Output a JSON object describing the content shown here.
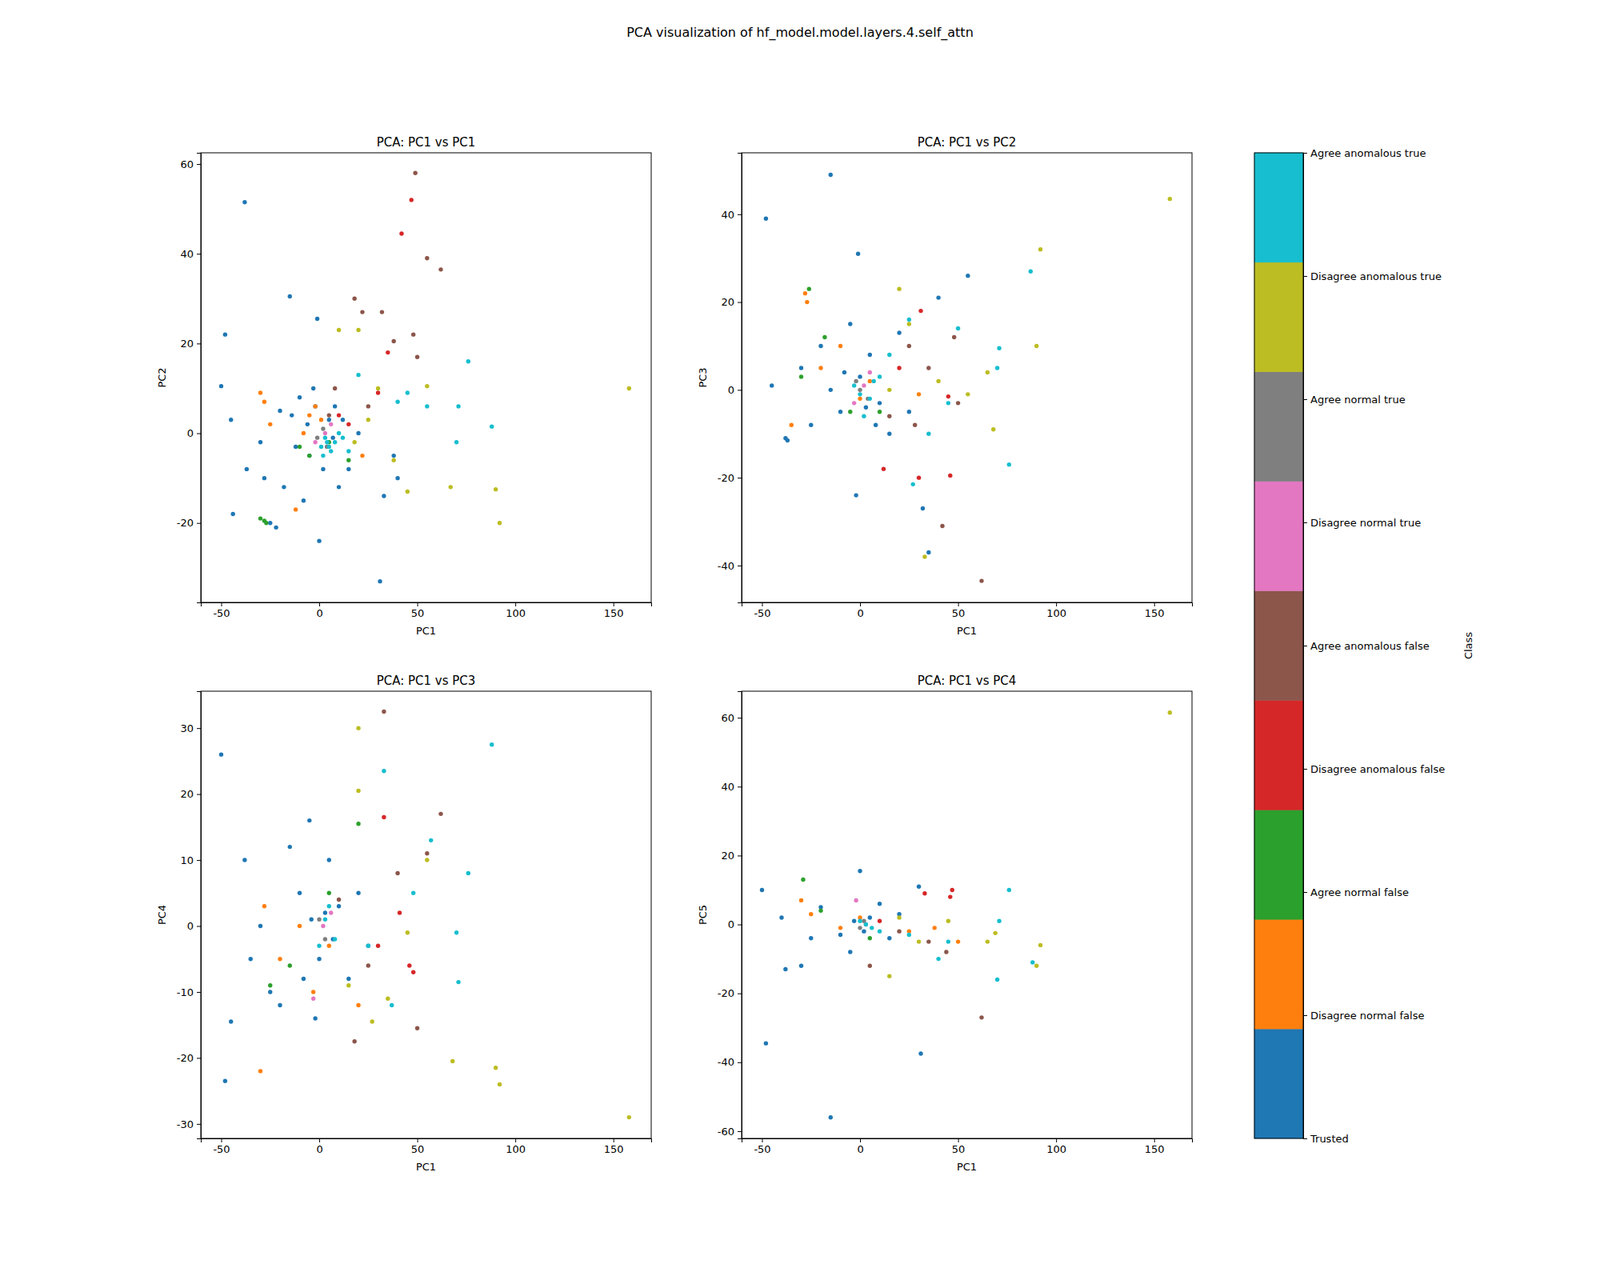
{
  "title": "PCA visualization of hf_model.model.layers.4.self_attn",
  "colorbar": {
    "label": "Class",
    "range": [
      0,
      8
    ],
    "ticks": [
      {
        "value": 0,
        "label": "Trusted"
      },
      {
        "value": 1,
        "label": "Disagree normal false"
      },
      {
        "value": 2,
        "label": "Agree normal false"
      },
      {
        "value": 3,
        "label": "Disagree anomalous false"
      },
      {
        "value": 4,
        "label": "Agree anomalous false"
      },
      {
        "value": 5,
        "label": "Disagree normal true"
      },
      {
        "value": 6,
        "label": "Agree normal true"
      },
      {
        "value": 7,
        "label": "Disagree anomalous true"
      },
      {
        "value": 8,
        "label": "Agree anomalous true"
      }
    ],
    "colors": [
      "#1f77b4",
      "#ff7f0e",
      "#2ca02c",
      "#d62728",
      "#8c564b",
      "#e377c2",
      "#7f7f7f",
      "#bcbd22",
      "#17becf"
    ]
  },
  "chart_data": [
    {
      "type": "scatter",
      "title": "PCA: PC1 vs PC1",
      "x_label": "PC1",
      "y_label": "PC2",
      "marker": "o",
      "xlim": [
        -60.4,
        169.3
      ],
      "ylim": [
        -37.7,
        62.5
      ],
      "xticks": [
        -50,
        0,
        50,
        100,
        150
      ],
      "yticks": [
        -20,
        0,
        20,
        40,
        60
      ],
      "series": [
        {
          "color": "#1f77b4",
          "x": [
            -38,
            -15,
            -1,
            -48,
            -50,
            -45,
            -44,
            -37,
            -28,
            -22,
            -25,
            0,
            31,
            33,
            38,
            40,
            -20,
            -10,
            -5,
            5,
            -12,
            2,
            8,
            -3,
            -30,
            -18,
            15,
            20,
            -8,
            10,
            -6,
            4,
            -14,
            12,
            -2,
            7
          ],
          "values": [
            51.5,
            30.5,
            25.5,
            22,
            10.5,
            3,
            -18,
            -8,
            -10,
            -21,
            -20,
            -24,
            -33,
            -14,
            -5,
            -10,
            5,
            8,
            -5,
            3,
            -3,
            -8,
            6,
            10,
            -2,
            -12,
            -8,
            0,
            -15,
            -12,
            2,
            -3,
            4,
            3,
            6,
            -1
          ]
        },
        {
          "color": "#ff7f0e",
          "x": [
            -30,
            -28,
            -25,
            -12,
            -5,
            -2,
            1,
            -8,
            22
          ],
          "values": [
            9,
            7,
            2,
            -17,
            4,
            6,
            3,
            0,
            -5
          ]
        },
        {
          "color": "#2ca02c",
          "x": [
            -30,
            -28,
            -27,
            -10,
            -5,
            5,
            15
          ],
          "values": [
            -19,
            -19.5,
            -20,
            -3,
            -5,
            -2,
            -6
          ]
        },
        {
          "color": "#d62728",
          "x": [
            47,
            42,
            35,
            30,
            15,
            10
          ],
          "values": [
            52,
            44.5,
            18,
            9,
            2,
            4
          ]
        },
        {
          "color": "#8c564b",
          "x": [
            49,
            55,
            62,
            18,
            22,
            32,
            38,
            48,
            50,
            25,
            8,
            5
          ],
          "values": [
            58,
            39,
            36.5,
            30,
            27,
            27,
            20.5,
            22,
            17,
            6,
            10,
            4
          ]
        },
        {
          "color": "#e377c2",
          "x": [
            3,
            -2,
            6
          ],
          "values": [
            0,
            -2,
            2
          ]
        },
        {
          "color": "#7f7f7f",
          "x": [
            2,
            -1,
            4
          ],
          "values": [
            1,
            -1,
            -3
          ]
        },
        {
          "color": "#bcbd22",
          "x": [
            158,
            92,
            90,
            67,
            45,
            38,
            25,
            20,
            10,
            30,
            55,
            18
          ],
          "values": [
            10,
            -20,
            -12.5,
            -12,
            -13,
            -6,
            3,
            23,
            23,
            10,
            10.5,
            -2
          ]
        },
        {
          "color": "#17becf",
          "x": [
            76,
            88,
            71,
            70,
            55,
            45,
            40,
            20,
            15,
            5,
            8,
            2,
            10,
            3,
            6,
            1,
            12,
            4
          ],
          "values": [
            16,
            1.5,
            6,
            -2,
            6,
            9,
            7,
            13,
            -4,
            -3,
            -2,
            -5,
            0,
            -1,
            -4,
            -3,
            -1,
            -2
          ]
        }
      ]
    },
    {
      "type": "scatter",
      "title": "PCA: PC1 vs PC2",
      "x_label": "PC1",
      "y_label": "PC3",
      "marker": "o",
      "xlim": [
        -60.4,
        169.3
      ],
      "ylim": [
        -48.4,
        54
      ],
      "xticks": [
        -50,
        0,
        50,
        100,
        150
      ],
      "yticks": [
        -40,
        -20,
        0,
        20,
        40
      ],
      "series": [
        {
          "color": "#1f77b4",
          "x": [
            -15,
            -48,
            -1,
            40,
            55,
            -45,
            -38,
            -37,
            -2,
            32,
            35,
            -30,
            -20,
            -10,
            0,
            10,
            20,
            5,
            -25,
            -5,
            15,
            8,
            -15,
            25,
            -8,
            3
          ],
          "values": [
            49,
            39,
            31,
            21,
            26,
            1,
            -11,
            -11.5,
            -24,
            -27,
            -37,
            5,
            10,
            -5,
            3,
            -3,
            13,
            8,
            -8,
            15,
            -10,
            -8,
            0,
            -5,
            4,
            -4
          ]
        },
        {
          "color": "#ff7f0e",
          "x": [
            -28,
            -27,
            -35,
            -20,
            -10,
            0,
            5,
            30
          ],
          "values": [
            22,
            20,
            -8,
            5,
            10,
            -2,
            2,
            -1
          ]
        },
        {
          "color": "#2ca02c",
          "x": [
            -26,
            -18,
            -30,
            -5,
            10
          ],
          "values": [
            23,
            12,
            3,
            -5,
            -5
          ]
        },
        {
          "color": "#d62728",
          "x": [
            12,
            31,
            46,
            45,
            30,
            20
          ],
          "values": [
            -18,
            18,
            -19.5,
            -1.5,
            -20,
            5
          ]
        },
        {
          "color": "#8c564b",
          "x": [
            62,
            42,
            48,
            28,
            25,
            35,
            50,
            15
          ],
          "values": [
            -43.5,
            -31,
            12,
            -8,
            10,
            5,
            -3,
            -6
          ]
        },
        {
          "color": "#e377c2",
          "x": [
            2,
            -3,
            5
          ],
          "values": [
            1,
            -3,
            4
          ]
        },
        {
          "color": "#7f7f7f",
          "x": [
            0,
            4,
            -2
          ],
          "values": [
            0,
            -2,
            2
          ]
        },
        {
          "color": "#bcbd22",
          "x": [
            158,
            92,
            90,
            68,
            65,
            33,
            20,
            25,
            40,
            55,
            15
          ],
          "values": [
            43.5,
            32,
            10,
            -9,
            4,
            -38,
            23,
            15,
            2,
            -1,
            0
          ]
        },
        {
          "color": "#17becf",
          "x": [
            87,
            71,
            70,
            76,
            50,
            45,
            35,
            25,
            27,
            10,
            5,
            2,
            15,
            0,
            7,
            -3
          ],
          "values": [
            27,
            9.5,
            5,
            -17,
            14,
            -3,
            -10,
            16,
            -21.5,
            3,
            -2,
            -6,
            8,
            -1,
            2,
            1
          ]
        }
      ]
    },
    {
      "type": "scatter",
      "title": "PCA: PC1 vs PC3",
      "x_label": "PC1",
      "y_label": "PC4",
      "marker": "o",
      "xlim": [
        -60.4,
        169.3
      ],
      "ylim": [
        -32.2,
        35.6
      ],
      "xticks": [
        -50,
        0,
        50,
        100,
        150
      ],
      "yticks": [
        -30,
        -20,
        -10,
        0,
        10,
        20,
        30
      ],
      "series": [
        {
          "color": "#1f77b4",
          "x": [
            -50,
            -48,
            -45,
            -38,
            -35,
            -25,
            -20,
            -5,
            -2,
            -10,
            0,
            5,
            15,
            10,
            -15,
            -30,
            20,
            -8,
            25,
            3,
            -4,
            7
          ],
          "values": [
            26,
            -23.5,
            -14.5,
            10,
            -5,
            -10,
            -12,
            16,
            -14,
            5,
            -5,
            10,
            -8,
            3,
            12,
            0,
            5,
            -8,
            -3,
            2,
            1,
            -2
          ]
        },
        {
          "color": "#ff7f0e",
          "x": [
            -30,
            -28,
            -20,
            -10,
            -3,
            5,
            20
          ],
          "values": [
            -22,
            3,
            -5,
            0,
            -10,
            -3,
            -12
          ]
        },
        {
          "color": "#2ca02c",
          "x": [
            -25,
            -15,
            20,
            5
          ],
          "values": [
            -9,
            -6,
            15.5,
            5
          ]
        },
        {
          "color": "#d62728",
          "x": [
            33,
            41,
            46,
            48,
            30
          ],
          "values": [
            16.5,
            2,
            -6,
            -7,
            -3
          ]
        },
        {
          "color": "#8c564b",
          "x": [
            33,
            62,
            50,
            18,
            55,
            40,
            25,
            10
          ],
          "values": [
            32.5,
            17,
            -15.5,
            -17.5,
            11,
            8,
            -6,
            4
          ]
        },
        {
          "color": "#e377c2",
          "x": [
            -3,
            2,
            6
          ],
          "values": [
            -11,
            0,
            2
          ]
        },
        {
          "color": "#7f7f7f",
          "x": [
            0,
            3
          ],
          "values": [
            1,
            -2
          ]
        },
        {
          "color": "#bcbd22",
          "x": [
            158,
            92,
            90,
            68,
            20,
            20,
            55,
            35,
            27,
            15,
            45
          ],
          "values": [
            -29,
            -24,
            -21.5,
            -20.5,
            30,
            20.5,
            10,
            -11,
            -14.5,
            -9,
            -1
          ]
        },
        {
          "color": "#17becf",
          "x": [
            88,
            33,
            76,
            71,
            70,
            37,
            57,
            48,
            25,
            8,
            3,
            0,
            5
          ],
          "values": [
            27.5,
            23.5,
            8,
            -8.5,
            -1,
            -12,
            13,
            5,
            -3,
            -2,
            1,
            -3,
            3
          ]
        }
      ]
    },
    {
      "type": "scatter",
      "title": "PCA: PC1 vs PC4",
      "x_label": "PC1",
      "y_label": "PC5",
      "marker": "o",
      "xlim": [
        -60.4,
        169.3
      ],
      "ylim": [
        -62.1,
        67.7
      ],
      "xticks": [
        -50,
        0,
        50,
        100,
        150
      ],
      "yticks": [
        -60,
        -40,
        -20,
        0,
        20,
        40,
        60
      ],
      "series": [
        {
          "color": "#1f77b4",
          "x": [
            -15,
            -48,
            31,
            -50,
            -38,
            -30,
            0,
            30,
            -40,
            -20,
            -10,
            5,
            15,
            -25,
            10,
            20,
            -5,
            -3,
            2
          ],
          "values": [
            -56,
            -34.5,
            -37.5,
            10,
            -13,
            -12,
            15.5,
            11,
            2,
            5,
            -3,
            2,
            -4,
            -4,
            6,
            3,
            -8,
            1,
            -2
          ]
        },
        {
          "color": "#ff7f0e",
          "x": [
            -30,
            -25,
            -10,
            0,
            25,
            50,
            38
          ],
          "values": [
            7,
            3,
            -1,
            2,
            -2,
            -5,
            -1
          ]
        },
        {
          "color": "#2ca02c",
          "x": [
            -29,
            -20,
            5
          ],
          "values": [
            13,
            4,
            -4
          ]
        },
        {
          "color": "#d62728",
          "x": [
            47,
            46,
            33,
            10
          ],
          "values": [
            10,
            8,
            9,
            1
          ]
        },
        {
          "color": "#8c564b",
          "x": [
            62,
            44,
            35,
            20,
            5
          ],
          "values": [
            -27,
            -8,
            -5,
            -2,
            -12
          ]
        },
        {
          "color": "#e377c2",
          "x": [
            -2,
            3
          ],
          "values": [
            7,
            0
          ]
        },
        {
          "color": "#7f7f7f",
          "x": [
            0,
            2
          ],
          "values": [
            -1,
            1
          ]
        },
        {
          "color": "#bcbd22",
          "x": [
            158,
            92,
            90,
            69,
            65,
            30,
            20,
            45,
            15
          ],
          "values": [
            61.5,
            -6,
            -12,
            -2.5,
            -5,
            -5,
            2,
            1,
            -15
          ]
        },
        {
          "color": "#17becf",
          "x": [
            76,
            71,
            70,
            88,
            40,
            45,
            25,
            10,
            3,
            0,
            6
          ],
          "values": [
            10,
            1,
            -16,
            -11,
            -10,
            -5,
            -3,
            -2,
            0,
            1,
            -1
          ]
        }
      ]
    }
  ]
}
